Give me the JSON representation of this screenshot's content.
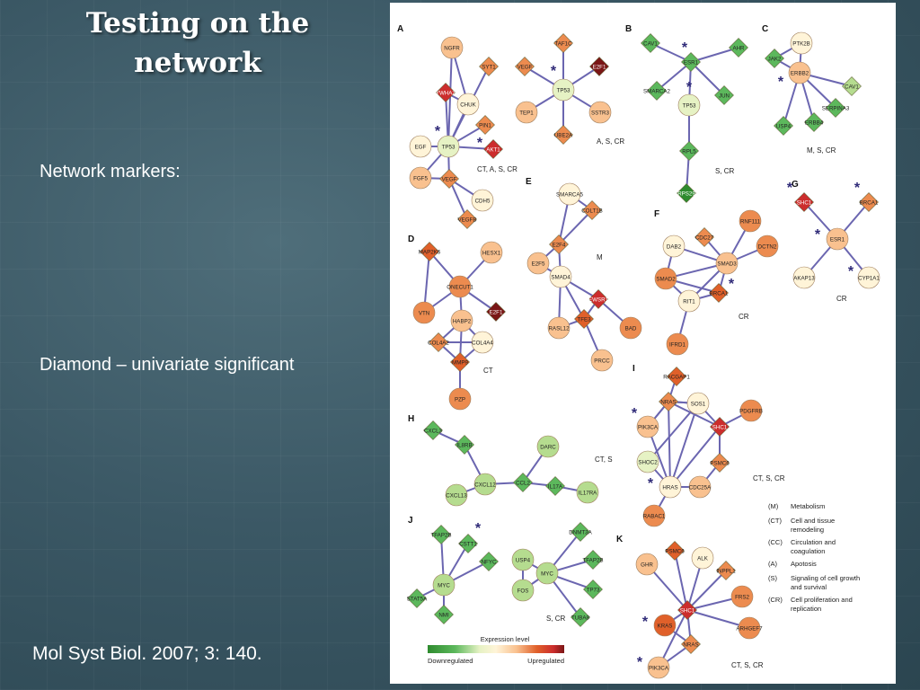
{
  "title": "Testing on the network",
  "bullets": [
    "Network markers:",
    "Diamond – univariate significant"
  ],
  "citation": "Mol Syst Biol. 2007; 3: 140.",
  "colors": {
    "gd": "#2e8b2e",
    "g": "#5cb85c",
    "lg": "#b5dc8f",
    "pg": "#e6f2c4",
    "cr": "#fff4d8",
    "lo": "#f9c18f",
    "o": "#ec8b4f",
    "do": "#e0602a",
    "r": "#cc2d2d",
    "dr": "#7a1616",
    "edge": "#6b66b0"
  },
  "networks": [
    {
      "id": "A",
      "label": "CT, A, S, CR",
      "nodes": [
        {
          "t": "NGFR",
          "s": "c",
          "c": "lo"
        },
        {
          "t": "SYT1",
          "s": "d",
          "c": "o"
        },
        {
          "t": "YWHAZ",
          "s": "d",
          "c": "r"
        },
        {
          "t": "CHUK",
          "s": "c",
          "c": "cr"
        },
        {
          "t": "PIN1",
          "s": "d",
          "c": "o"
        },
        {
          "t": "AKT1",
          "s": "d",
          "c": "r"
        },
        {
          "t": "EGF",
          "s": "c",
          "c": "cr"
        },
        {
          "t": "TP53",
          "s": "c",
          "c": "pg"
        },
        {
          "t": "FGF5",
          "s": "c",
          "c": "lo"
        },
        {
          "t": "VEGF",
          "s": "d",
          "c": "o"
        },
        {
          "t": "CDH5",
          "s": "c",
          "c": "cr"
        },
        {
          "t": "VEGFB",
          "s": "d",
          "c": "o"
        }
      ]
    },
    {
      "id": "A2",
      "label": "A, S, CR",
      "nodes": [
        {
          "t": "TAF1C",
          "s": "d",
          "c": "o"
        },
        {
          "t": "VEGF",
          "s": "d",
          "c": "o"
        },
        {
          "t": "E2F1",
          "s": "d",
          "c": "dr"
        },
        {
          "t": "TP53",
          "s": "c",
          "c": "pg"
        },
        {
          "t": "TEP1",
          "s": "c",
          "c": "lo"
        },
        {
          "t": "SSTR3",
          "s": "c",
          "c": "lo"
        },
        {
          "t": "UBE2A",
          "s": "d",
          "c": "o"
        }
      ]
    },
    {
      "id": "B",
      "label": "S, CR",
      "nodes": [
        {
          "t": "CAV1",
          "s": "d",
          "c": "g"
        },
        {
          "t": "ESR1",
          "s": "d",
          "c": "g"
        },
        {
          "t": "AHR",
          "s": "d",
          "c": "g"
        },
        {
          "t": "SMARCA2",
          "s": "d",
          "c": "g"
        },
        {
          "t": "JUN",
          "s": "d",
          "c": "g"
        },
        {
          "t": "TP53",
          "s": "c",
          "c": "pg"
        },
        {
          "t": "RPL5",
          "s": "d",
          "c": "g"
        },
        {
          "t": "RPS29",
          "s": "d",
          "c": "gd"
        }
      ]
    },
    {
      "id": "C",
      "label": "M, S, CR",
      "nodes": [
        {
          "t": "PTK2B",
          "s": "c",
          "c": "cr"
        },
        {
          "t": "JAK2",
          "s": "d",
          "c": "g"
        },
        {
          "t": "ERBB2",
          "s": "c",
          "c": "lo"
        },
        {
          "t": "CAV1",
          "s": "d",
          "c": "lg"
        },
        {
          "t": "SERPINA3",
          "s": "d",
          "c": "g"
        },
        {
          "t": "USP4",
          "s": "d",
          "c": "g"
        },
        {
          "t": "ERBB4",
          "s": "d",
          "c": "g"
        }
      ]
    },
    {
      "id": "D",
      "label": "CT",
      "nodes": [
        {
          "t": "MAP2K6",
          "s": "d",
          "c": "do"
        },
        {
          "t": "HESX1",
          "s": "c",
          "c": "lo"
        },
        {
          "t": "ONECUT1",
          "s": "c",
          "c": "o"
        },
        {
          "t": "VTN",
          "s": "c",
          "c": "o"
        },
        {
          "t": "HABP2",
          "s": "c",
          "c": "lo"
        },
        {
          "t": "E2F1",
          "s": "d",
          "c": "dr"
        },
        {
          "t": "COL4A2",
          "s": "d",
          "c": "o"
        },
        {
          "t": "COL4A4",
          "s": "c",
          "c": "cr"
        },
        {
          "t": "MMP9",
          "s": "d",
          "c": "do"
        },
        {
          "t": "PZP",
          "s": "c",
          "c": "o"
        }
      ]
    },
    {
      "id": "E",
      "label": "M",
      "nodes": [
        {
          "t": "SMARCA5",
          "s": "c",
          "c": "cr"
        },
        {
          "t": "COLT1B",
          "s": "d",
          "c": "o"
        },
        {
          "t": "E2F4",
          "s": "d",
          "c": "o"
        },
        {
          "t": "E2F5",
          "s": "c",
          "c": "lo"
        },
        {
          "t": "SMAD4",
          "s": "c",
          "c": "cr"
        },
        {
          "t": "EWSR1",
          "s": "d",
          "c": "r"
        },
        {
          "t": "RASL12",
          "s": "c",
          "c": "lo"
        },
        {
          "t": "TFE3",
          "s": "d",
          "c": "do"
        },
        {
          "t": "BAD",
          "s": "c",
          "c": "o"
        },
        {
          "t": "PRCC",
          "s": "c",
          "c": "lo"
        }
      ]
    },
    {
      "id": "F",
      "label": "CR",
      "nodes": [
        {
          "t": "RNF111",
          "s": "c",
          "c": "o"
        },
        {
          "t": "CDC27",
          "s": "d",
          "c": "o"
        },
        {
          "t": "DAB2",
          "s": "c",
          "c": "cr"
        },
        {
          "t": "SMAD3",
          "s": "c",
          "c": "lo"
        },
        {
          "t": "DCTN2",
          "s": "c",
          "c": "o"
        },
        {
          "t": "SMAD2",
          "s": "c",
          "c": "o"
        },
        {
          "t": "BRCA1",
          "s": "d",
          "c": "do"
        },
        {
          "t": "RIT1",
          "s": "c",
          "c": "cr"
        },
        {
          "t": "IFRD1",
          "s": "c",
          "c": "o"
        }
      ]
    },
    {
      "id": "G",
      "label": "CR",
      "nodes": [
        {
          "t": "SHC1",
          "s": "d",
          "c": "r"
        },
        {
          "t": "BRCA1",
          "s": "d",
          "c": "o"
        },
        {
          "t": "ESR1",
          "s": "c",
          "c": "lo"
        },
        {
          "t": "AKAP13",
          "s": "c",
          "c": "cr"
        },
        {
          "t": "CYP1A1",
          "s": "c",
          "c": "cr"
        }
      ]
    },
    {
      "id": "I",
      "label": "CT, S, CR",
      "nodes": [
        {
          "t": "RACGAP1",
          "s": "d",
          "c": "do"
        },
        {
          "t": "NRAS",
          "s": "d",
          "c": "o"
        },
        {
          "t": "SOS1",
          "s": "c",
          "c": "cr"
        },
        {
          "t": "PDGFRB",
          "s": "c",
          "c": "o"
        },
        {
          "t": "PIK3CA",
          "s": "c",
          "c": "lo"
        },
        {
          "t": "SHC1",
          "s": "d",
          "c": "r"
        },
        {
          "t": "SHOC2",
          "s": "c",
          "c": "pg"
        },
        {
          "t": "PSMC6",
          "s": "d",
          "c": "o"
        },
        {
          "t": "HRAS",
          "s": "c",
          "c": "cr"
        },
        {
          "t": "CDC25A",
          "s": "c",
          "c": "lo"
        },
        {
          "t": "RABAC1",
          "s": "c",
          "c": "o"
        }
      ]
    },
    {
      "id": "H",
      "label": "CT, S",
      "nodes": [
        {
          "t": "CXCL3",
          "s": "d",
          "c": "g"
        },
        {
          "t": "IL8RB",
          "s": "d",
          "c": "g"
        },
        {
          "t": "DARC",
          "s": "c",
          "c": "lg"
        },
        {
          "t": "CXCL12",
          "s": "c",
          "c": "lg"
        },
        {
          "t": "CCL2",
          "s": "d",
          "c": "g"
        },
        {
          "t": "IL17A",
          "s": "d",
          "c": "g"
        },
        {
          "t": "IL17RA",
          "s": "c",
          "c": "lg"
        },
        {
          "t": "CXCL13",
          "s": "c",
          "c": "lg"
        }
      ]
    },
    {
      "id": "J",
      "label": "",
      "nodes": [
        {
          "t": "TFAP2B",
          "s": "d",
          "c": "g"
        },
        {
          "t": "CSTT1",
          "s": "d",
          "c": "g"
        },
        {
          "t": "NFYC",
          "s": "d",
          "c": "g"
        },
        {
          "t": "MYC",
          "s": "c",
          "c": "lg"
        },
        {
          "t": "STAT5A",
          "s": "d",
          "c": "g"
        },
        {
          "t": "NMI",
          "s": "d",
          "c": "g"
        }
      ]
    },
    {
      "id": "J2",
      "label": "S, CR",
      "nodes": [
        {
          "t": "DNMT3A",
          "s": "d",
          "c": "g"
        },
        {
          "t": "USP4",
          "s": "c",
          "c": "lg"
        },
        {
          "t": "TFAP2B",
          "s": "d",
          "c": "g"
        },
        {
          "t": "MYC",
          "s": "c",
          "c": "lg"
        },
        {
          "t": "FOS",
          "s": "c",
          "c": "lg"
        },
        {
          "t": "TP73",
          "s": "d",
          "c": "g"
        },
        {
          "t": "TUBA8",
          "s": "d",
          "c": "g"
        }
      ]
    },
    {
      "id": "K",
      "label": "CT, S, CR",
      "nodes": [
        {
          "t": "PSMC6",
          "s": "d",
          "c": "do"
        },
        {
          "t": "ALK",
          "s": "c",
          "c": "cr"
        },
        {
          "t": "GHR",
          "s": "c",
          "c": "lo"
        },
        {
          "t": "INPPL1",
          "s": "d",
          "c": "o"
        },
        {
          "t": "SHC1",
          "s": "d",
          "c": "r"
        },
        {
          "t": "FRS2",
          "s": "c",
          "c": "o"
        },
        {
          "t": "KRAS",
          "s": "c",
          "c": "do"
        },
        {
          "t": "ARHGEF7",
          "s": "c",
          "c": "o"
        },
        {
          "t": "NRAS",
          "s": "d",
          "c": "o"
        },
        {
          "t": "PIK3CA",
          "s": "c",
          "c": "lo"
        }
      ]
    }
  ],
  "legend": [
    {
      "abbr": "(M)",
      "desc": [
        "Metabolism"
      ]
    },
    {
      "abbr": "(CT)",
      "desc": [
        "Cell and tissue",
        "remodeling"
      ]
    },
    {
      "abbr": "(CC)",
      "desc": [
        "Circulation and",
        "coagulation"
      ]
    },
    {
      "abbr": "(A)",
      "desc": [
        "Apotosis"
      ]
    },
    {
      "abbr": "(S)",
      "desc": [
        "Signaling of cell growth",
        "and survival"
      ]
    },
    {
      "abbr": "(CR)",
      "desc": [
        "Cell proliferation and",
        "replication"
      ]
    }
  ],
  "expression": {
    "title": "Expression level",
    "low": "Downregulated",
    "high": "Upregulated"
  }
}
